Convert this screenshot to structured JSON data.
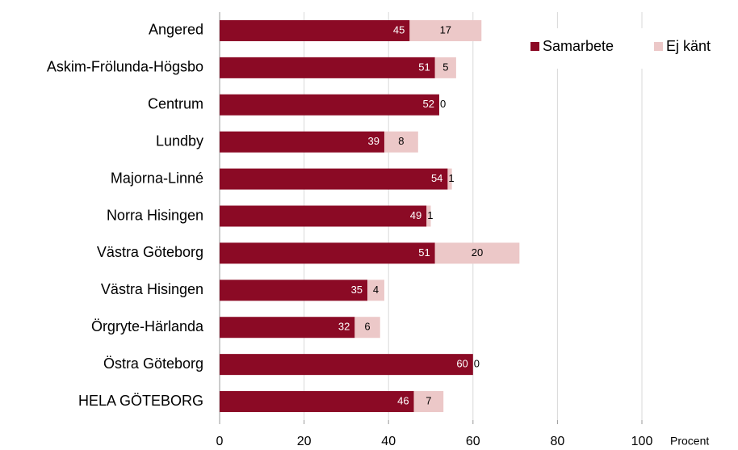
{
  "chart_data": {
    "type": "stacked_bar_horizontal",
    "categories": [
      "Angered",
      "Askim-Frölunda-Högsbo",
      "Centrum",
      "Lundby",
      "Majorna-Linné",
      "Norra Hisingen",
      "Västra Göteborg",
      "Västra Hisingen",
      "Örgryte-Härlanda",
      "Östra Göteborg",
      "HELA GÖTEBORG"
    ],
    "series": [
      {
        "name": "Samarbete",
        "color": "#8b0a25",
        "values": [
          45,
          51,
          52,
          39,
          54,
          49,
          51,
          35,
          32,
          60,
          46
        ]
      },
      {
        "name": "Ej känt",
        "color": "#ecc8c8",
        "values": [
          17,
          5,
          0,
          8,
          1,
          1,
          20,
          4,
          6,
          0,
          7
        ]
      }
    ],
    "xlim": [
      0,
      100
    ],
    "xticks": [
      0,
      20,
      40,
      60,
      80,
      100
    ],
    "xlabel": "Procent",
    "grid": true,
    "legend": "top-right"
  }
}
